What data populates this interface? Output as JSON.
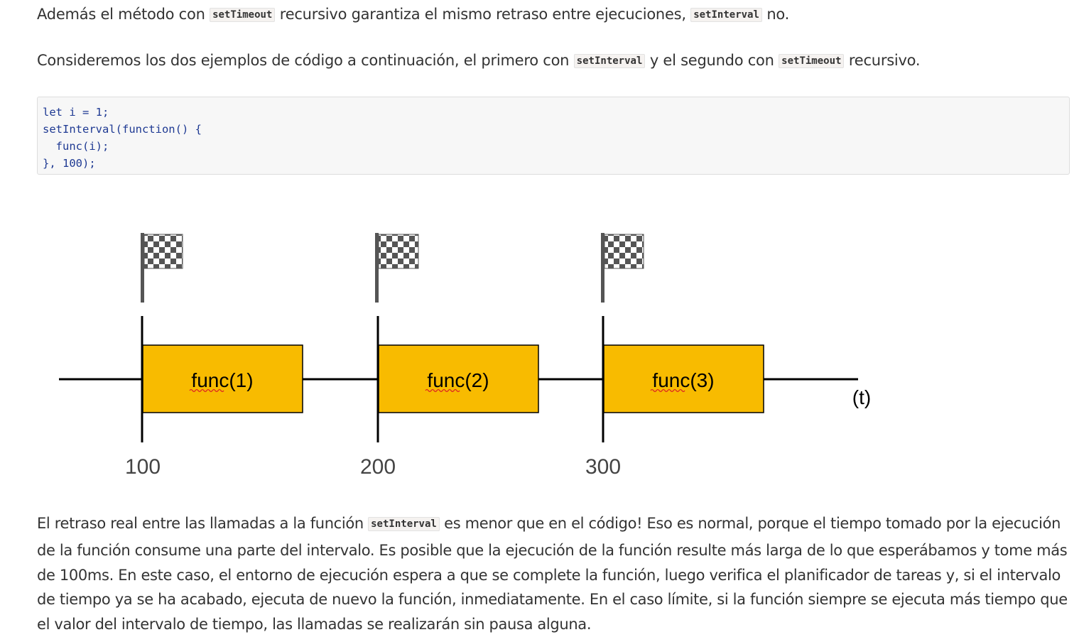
{
  "paragraphs": {
    "p1": {
      "before": "Además el método con ",
      "code1": "setTimeout",
      "middle": " recursivo garantiza el mismo retraso entre ejecuciones, ",
      "code2": "setInterval",
      "after": " no."
    },
    "p2": {
      "before": "Consideremos los dos ejemplos de código a continuación, el primero con ",
      "code1": "setInterval",
      "middle": " y el segundo con ",
      "code2": "setTimeout",
      "after": " recursivo."
    },
    "p3": {
      "before": "El retraso real entre las llamadas a la función ",
      "code1": "setInterval",
      "after": " es menor que en el código! Eso es normal, porque el tiempo tomado por la ejecución de la función consume una parte del intervalo. Es posible que la ejecución de la función resulte más larga de lo que esperábamos y tome más de 100ms. En este caso, el entorno de ejecución espera a que se complete la función, luego verifica el planificador de tareas y, si el intervalo de tiempo ya se ha acabado, ejecuta de nuevo la función, inmediatamente. En el caso límite, si la función siempre se ejecuta más tiempo que el valor del intervalo de tiempo, las llamadas se realizarán sin pausa alguna."
    }
  },
  "code_block": {
    "lines": [
      "let i = 1;",
      "setInterval(function() {",
      "  func(i);",
      "}, 100);"
    ]
  },
  "diagram": {
    "boxes": [
      {
        "label": "func(1)",
        "start": 100
      },
      {
        "label": "func(2)",
        "start": 200
      },
      {
        "label": "func(3)",
        "start": 300
      }
    ],
    "ticks": [
      "100",
      "200",
      "300"
    ],
    "axis_label": "(t)",
    "box_color": "#f8bb00",
    "flag_color": "#555555"
  }
}
